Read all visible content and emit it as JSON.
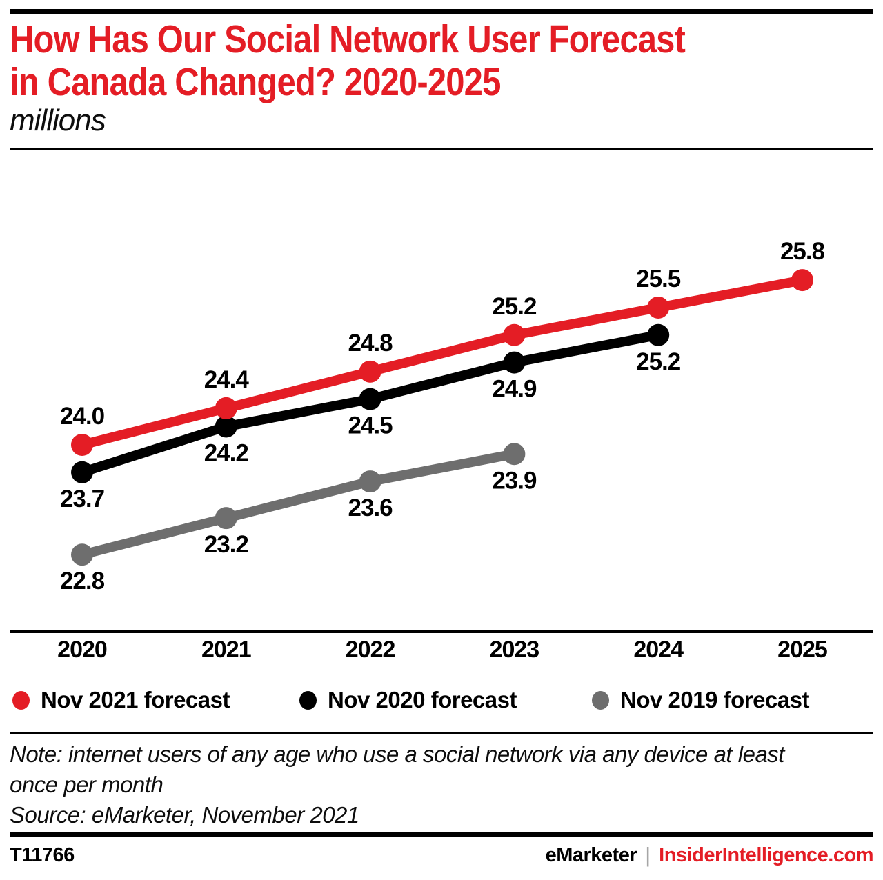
{
  "page": {
    "background": "#ffffff",
    "accent_red": "#e41d25",
    "gray": "#6e6e6e"
  },
  "header": {
    "title_line1": "How Has Our Social Network User Forecast",
    "title_line2": "in Canada Changed? 2020-2025",
    "subtitle": "millions"
  },
  "chart_data": {
    "type": "line",
    "title": "How Has Our Social Network User Forecast in Canada Changed? 2020-2025",
    "xlabel": "",
    "ylabel": "millions",
    "categories": [
      "2020",
      "2021",
      "2022",
      "2023",
      "2024",
      "2025"
    ],
    "series": [
      {
        "name": "Nov 2021 forecast",
        "color": "#e41d25",
        "values": [
          24.0,
          24.4,
          24.8,
          25.2,
          25.5,
          25.8
        ],
        "label_position": "above"
      },
      {
        "name": "Nov 2020 forecast",
        "color": "#000000",
        "values": [
          23.7,
          24.2,
          24.5,
          24.9,
          25.2
        ],
        "label_position": "below"
      },
      {
        "name": "Nov 2019 forecast",
        "color": "#6e6e6e",
        "values": [
          22.8,
          23.2,
          23.6,
          23.9
        ],
        "label_position": "below"
      }
    ],
    "ylim": [
      22.0,
      26.4
    ],
    "grid": false,
    "legend_position": "bottom",
    "value_label_decimals": 1
  },
  "legend": {
    "items": [
      {
        "label": "Nov 2021 forecast",
        "color": "#e41d25"
      },
      {
        "label": "Nov 2020 forecast",
        "color": "#000000"
      },
      {
        "label": "Nov 2019 forecast",
        "color": "#6e6e6e"
      }
    ]
  },
  "notes": {
    "note_line1": "Note: internet users of any age who use a social network via any device at least",
    "note_line2": "once per month",
    "source": "Source: eMarketer, November 2021"
  },
  "footer": {
    "chart_id": "T11766",
    "brand": "eMarketer",
    "separator": "|",
    "site": "InsiderIntelligence.com"
  }
}
